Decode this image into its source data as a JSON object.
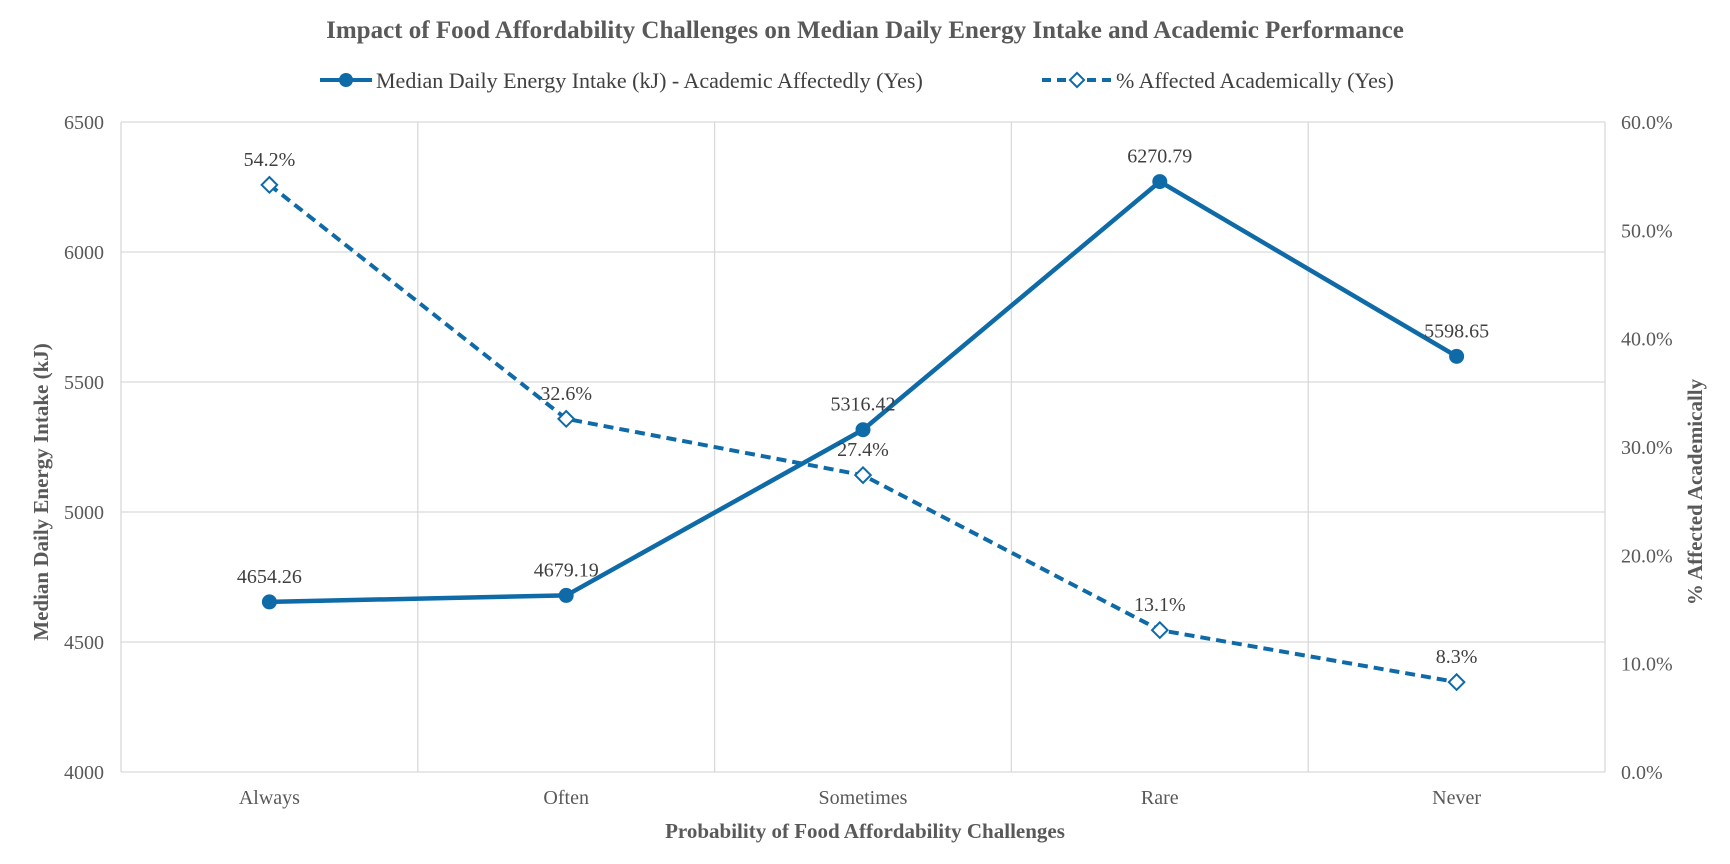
{
  "chart_data": {
    "type": "line",
    "title": "Impact of Food Affordability Challenges on Median Daily Energy Intake and Academic Performance",
    "xlabel": "Probability of Food Affordability Challenges",
    "ylabel": "Median Daily Energy Intake (kJ)",
    "y2label": "% Affected Academically",
    "categories": [
      "Always",
      "Often",
      "Sometimes",
      "Rare",
      "Never"
    ],
    "ylim": [
      4000,
      6500
    ],
    "yticks": [
      "4000",
      "4500",
      "5000",
      "5500",
      "6000",
      "6500"
    ],
    "y2lim": [
      0,
      60
    ],
    "y2ticks": [
      "0.0%",
      "10.0%",
      "20.0%",
      "30.0%",
      "40.0%",
      "50.0%",
      "60.0%"
    ],
    "grid": true,
    "legend_position": "top",
    "color": "#0f6aa8",
    "series": [
      {
        "name": "Median Daily Energy Intake (kJ) - Academic Affectedly (Yes)",
        "axis": "left",
        "style": "solid",
        "marker": "circle",
        "values": [
          4654.26,
          4679.19,
          5316.42,
          6270.79,
          5598.65
        ],
        "labels": [
          "4654.26",
          "4679.19",
          "5316.42",
          "6270.79",
          "5598.65"
        ]
      },
      {
        "name": "% Affected Academically (Yes)",
        "axis": "right",
        "style": "dashed",
        "marker": "diamond-open",
        "values": [
          54.2,
          32.6,
          27.4,
          13.1,
          8.3
        ],
        "labels": [
          "54.2%",
          "32.6%",
          "27.4%",
          "13.1%",
          "8.3%"
        ]
      }
    ]
  }
}
